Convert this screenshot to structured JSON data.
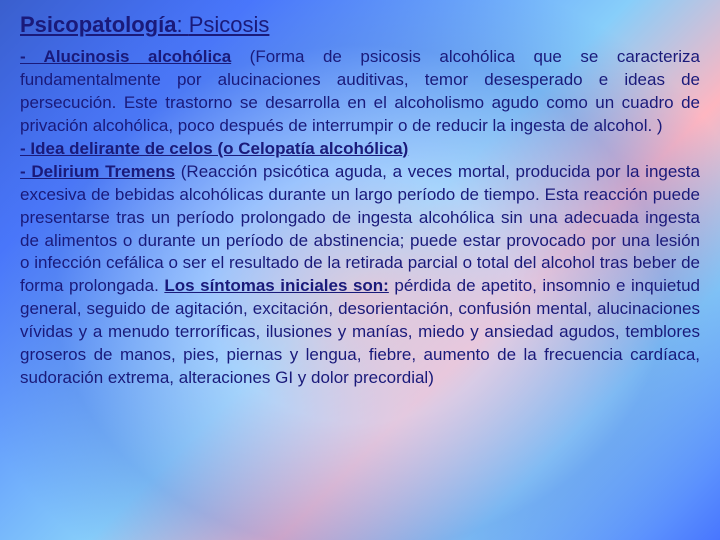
{
  "colors": {
    "text": "#1a1a7a",
    "bg_gradient_1": "#3a5fcd",
    "bg_gradient_2": "#4876ff",
    "bg_gradient_3": "#87cefa",
    "bg_gradient_4": "#ffb6c1"
  },
  "typography": {
    "title_fontsize": 22,
    "body_fontsize": 17,
    "font_family": "Arial"
  },
  "title": {
    "main": "Psicopatología",
    "separator": ": ",
    "sub": "Psicosis"
  },
  "items": {
    "i1_lead": " - Alucinosis alcohólica",
    "i1_body": " (Forma de psicosis alcohólica que se caracteriza fundamentalmente por alucinaciones auditivas, temor desesperado e ideas de persecución. Este trastorno se desarrolla en el alcoholismo agudo como un cuadro de privación alcohólica, poco después de interrumpir o de reducir la ingesta de alcohol. )",
    "i2_lead": " - Idea delirante de celos (o Celopatía alcohólica)",
    "i3_lead": " - Delirium Tremens",
    "i3_body1": " (Reacción psicótica aguda, a veces mortal, producida por la ingesta excesiva de bebidas alcohólicas durante un largo período de tiempo. Esta reacción puede presentarse tras un período prolongado de ingesta alcohólica sin una adecuada ingesta de alimentos o durante un período de abstinencia; puede estar provocado por una lesión o infección cefálica o ser el resultado de la retirada parcial o total del alcohol tras beber de forma prolongada. ",
    "i3_symptoms_label": "Los síntomas iniciales son:",
    "i3_body2": " pérdida de apetito, insomnio e inquietud general, seguido de agitación, excitación, desorientación, confusión mental, alucinaciones vívidas y a menudo terroríficas, ilusiones y manías, miedo y ansiedad agudos, temblores groseros de manos, pies, piernas y lengua, fiebre, aumento de la frecuencia cardíaca, sudoración extrema, alteraciones GI y dolor precordial)"
  }
}
